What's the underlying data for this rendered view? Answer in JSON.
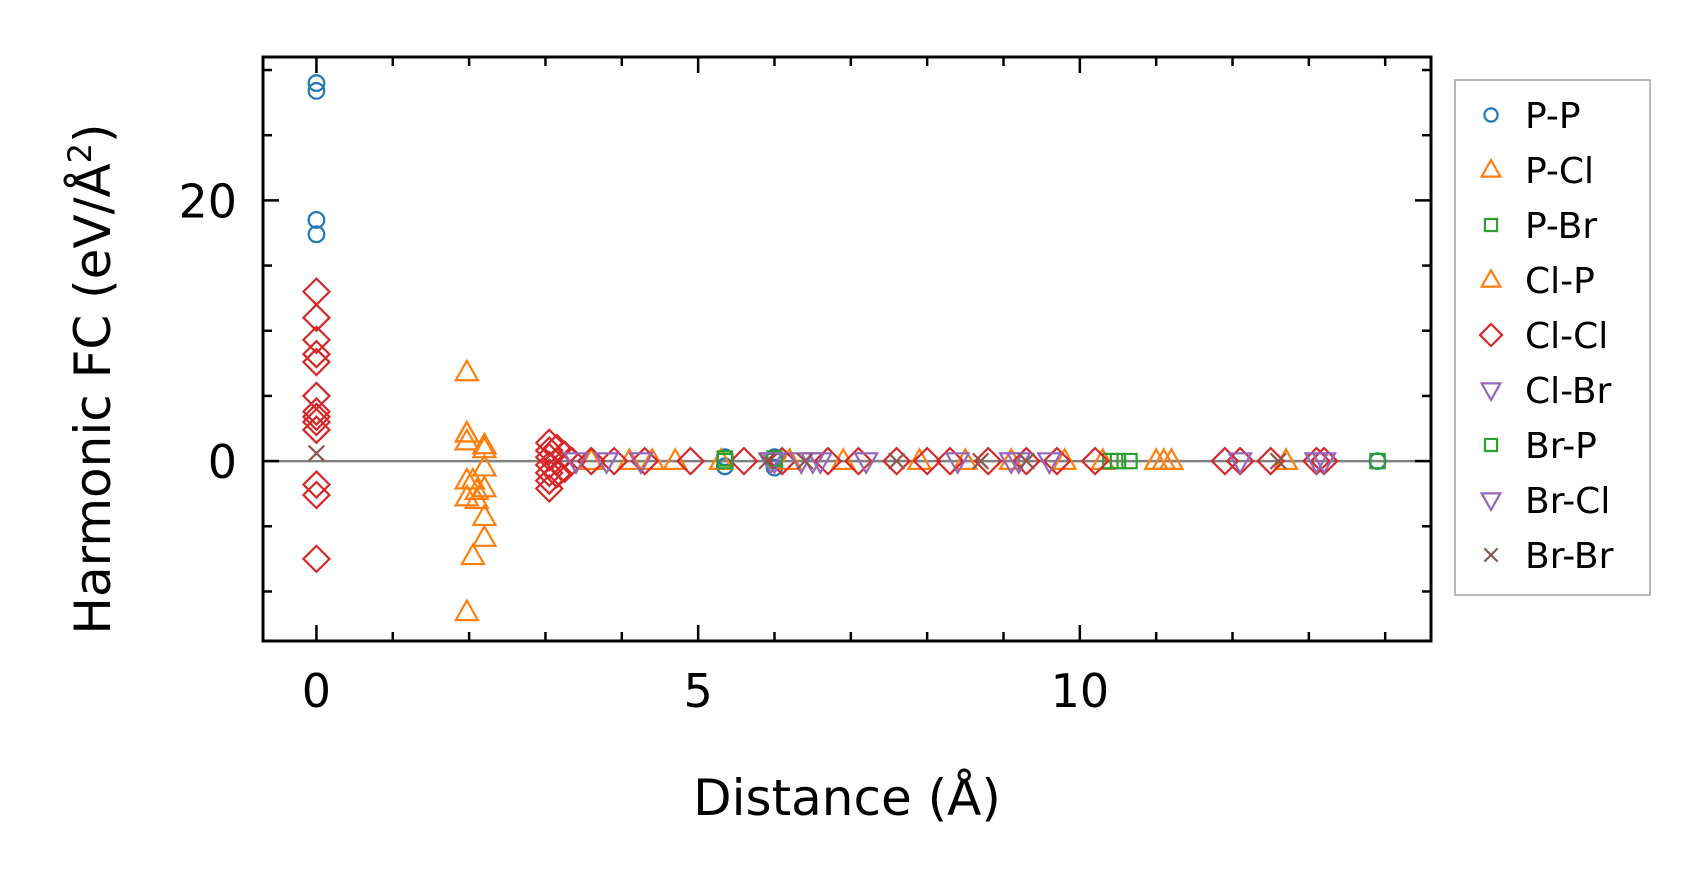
{
  "chart_data": {
    "type": "scatter",
    "title": "",
    "xlabel": "Distance (Å)",
    "ylabel": "Harmonic FC (eV/Å²)",
    "ylabel_parts": {
      "main": "Harmonic FC (eV/Å",
      "sup": "2",
      "tail": ")"
    },
    "xlim": [
      -0.7,
      14.6
    ],
    "ylim": [
      -13.8,
      31.0
    ],
    "xticks": [
      0,
      5,
      10
    ],
    "yticks": [
      0,
      20
    ],
    "xtick_labels": [
      "0",
      "5",
      "10"
    ],
    "ytick_labels": [
      "0",
      "20"
    ],
    "x_minor_step": 1,
    "y_minor_step": 5,
    "zero_line": true,
    "grid": false,
    "legend_position": "right, outside plot",
    "series": [
      {
        "name": "P-P",
        "marker": "circle",
        "color": "#1f77b4",
        "points": [
          [
            0,
            29.0
          ],
          [
            0,
            28.4
          ],
          [
            0,
            18.5
          ],
          [
            0,
            17.4
          ],
          [
            5.35,
            0.3
          ],
          [
            5.35,
            -0.4
          ],
          [
            6.0,
            0.3
          ],
          [
            6.0,
            -0.5
          ],
          [
            13.9,
            0.0
          ]
        ]
      },
      {
        "name": "P-Cl",
        "marker": "triangle-up",
        "color": "#ff7f0e",
        "points": [
          [
            1.97,
            6.8
          ],
          [
            1.97,
            2.1
          ],
          [
            1.97,
            1.5
          ],
          [
            2.05,
            -1.5
          ],
          [
            1.97,
            -2.8
          ],
          [
            2.05,
            -7.3
          ],
          [
            1.97,
            -11.6
          ],
          [
            2.2,
            1.2
          ],
          [
            2.2,
            -0.5
          ],
          [
            2.2,
            -2.1
          ],
          [
            2.2,
            -4.3
          ],
          [
            2.2,
            -5.9
          ],
          [
            2.1,
            -3.0
          ],
          [
            3.6,
            0.0
          ],
          [
            4.1,
            0.0
          ],
          [
            4.7,
            0.0
          ],
          [
            5.3,
            0.0
          ],
          [
            6.9,
            0.0
          ],
          [
            7.9,
            0.0
          ],
          [
            9.1,
            0.0
          ],
          [
            10.3,
            0.0
          ],
          [
            11.1,
            0.0
          ],
          [
            11.2,
            0.0
          ],
          [
            12.7,
            0.0
          ]
        ]
      },
      {
        "name": "P-Br",
        "marker": "square",
        "color": "#2ca02c",
        "points": [
          [
            5.35,
            0.0
          ],
          [
            6.0,
            0.0
          ],
          [
            10.4,
            0.0
          ],
          [
            10.65,
            0.0
          ],
          [
            13.9,
            0.0
          ]
        ]
      },
      {
        "name": "Cl-P",
        "marker": "triangle-up",
        "color": "#ff7f0e",
        "points": [
          [
            1.97,
            2.1
          ],
          [
            1.97,
            -1.5
          ],
          [
            2.1,
            -2.3
          ],
          [
            2.2,
            0.9
          ],
          [
            4.4,
            0.0
          ],
          [
            6.2,
            0.0
          ],
          [
            8.5,
            0.0
          ],
          [
            9.8,
            0.0
          ],
          [
            11.0,
            0.0
          ]
        ]
      },
      {
        "name": "Cl-Cl",
        "marker": "diamond",
        "color": "#d62728",
        "points": [
          [
            0,
            13.0
          ],
          [
            0,
            11.0
          ],
          [
            0,
            9.3
          ],
          [
            0,
            8.2
          ],
          [
            0,
            7.6
          ],
          [
            0,
            5.0
          ],
          [
            0,
            3.8
          ],
          [
            0,
            3.4
          ],
          [
            0,
            3.0
          ],
          [
            0,
            2.4
          ],
          [
            0,
            -1.8
          ],
          [
            0,
            -2.6
          ],
          [
            0,
            -7.5
          ],
          [
            3.05,
            1.4
          ],
          [
            3.05,
            0.8
          ],
          [
            3.05,
            0.3
          ],
          [
            3.05,
            -0.3
          ],
          [
            3.05,
            -0.9
          ],
          [
            3.05,
            -1.5
          ],
          [
            3.05,
            -2.1
          ],
          [
            3.15,
            1.0
          ],
          [
            3.15,
            0.0
          ],
          [
            3.15,
            -1.0
          ],
          [
            3.25,
            0.5
          ],
          [
            3.25,
            -0.6
          ],
          [
            3.35,
            0.0
          ],
          [
            3.6,
            0.0
          ],
          [
            3.9,
            0.0
          ],
          [
            4.3,
            0.0
          ],
          [
            4.9,
            0.0
          ],
          [
            5.6,
            0.0
          ],
          [
            6.1,
            0.0
          ],
          [
            6.7,
            0.0
          ],
          [
            7.1,
            0.0
          ],
          [
            7.6,
            0.0
          ],
          [
            8.0,
            0.0
          ],
          [
            8.3,
            0.0
          ],
          [
            8.8,
            0.0
          ],
          [
            9.3,
            0.0
          ],
          [
            9.7,
            0.0
          ],
          [
            10.2,
            0.0
          ],
          [
            11.9,
            0.0
          ],
          [
            12.1,
            0.0
          ],
          [
            12.5,
            0.0
          ],
          [
            13.1,
            0.0
          ],
          [
            13.2,
            0.0
          ]
        ]
      },
      {
        "name": "Cl-Br",
        "marker": "triangle-down",
        "color": "#9467bd",
        "points": [
          [
            3.4,
            0.0
          ],
          [
            3.8,
            0.0
          ],
          [
            4.25,
            0.0
          ],
          [
            6.0,
            0.0
          ],
          [
            6.5,
            0.0
          ],
          [
            7.2,
            0.0
          ],
          [
            8.4,
            0.0
          ],
          [
            9.2,
            0.0
          ],
          [
            9.6,
            0.0
          ],
          [
            12.1,
            0.0
          ],
          [
            13.1,
            0.0
          ]
        ]
      },
      {
        "name": "Br-P",
        "marker": "square",
        "color": "#2ca02c",
        "points": [
          [
            5.35,
            0.2
          ],
          [
            6.0,
            0.2
          ],
          [
            10.5,
            0.0
          ]
        ]
      },
      {
        "name": "Br-Cl",
        "marker": "triangle-down",
        "color": "#9467bd",
        "points": [
          [
            5.95,
            0.0
          ],
          [
            6.35,
            0.0
          ],
          [
            6.6,
            0.0
          ],
          [
            9.1,
            0.0
          ],
          [
            13.2,
            0.0
          ]
        ]
      },
      {
        "name": "Br-Br",
        "marker": "x",
        "color": "#8c564b",
        "points": [
          [
            0,
            0.6
          ],
          [
            5.9,
            0.0
          ],
          [
            6.4,
            0.0
          ],
          [
            7.6,
            0.0
          ],
          [
            8.7,
            0.0
          ],
          [
            9.3,
            0.0
          ],
          [
            12.6,
            0.0
          ]
        ]
      }
    ]
  }
}
